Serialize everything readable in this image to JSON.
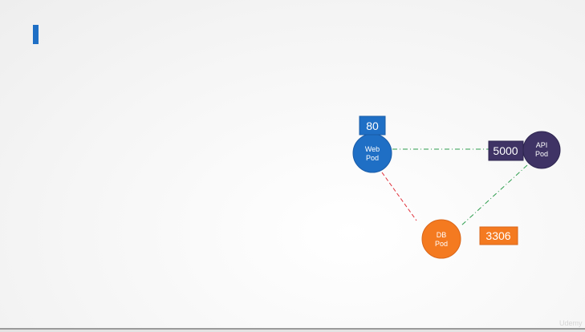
{
  "colors": {
    "accent": "#1f6fc5",
    "web": "#1f6fc5",
    "api": "#3f3365",
    "db": "#f47a20",
    "web_api_link": "#2e9e4e",
    "web_db_link": "#e0303a",
    "api_db_link": "#2e9e4e"
  },
  "pods": {
    "web": {
      "line1": "Web",
      "line2": "Pod"
    },
    "api": {
      "line1": "API",
      "line2": "Pod"
    },
    "db": {
      "line1": "DB",
      "line2": "Pod"
    }
  },
  "ports": {
    "web": "80",
    "api": "5000",
    "db": "3306"
  },
  "watermark": "Udemy"
}
